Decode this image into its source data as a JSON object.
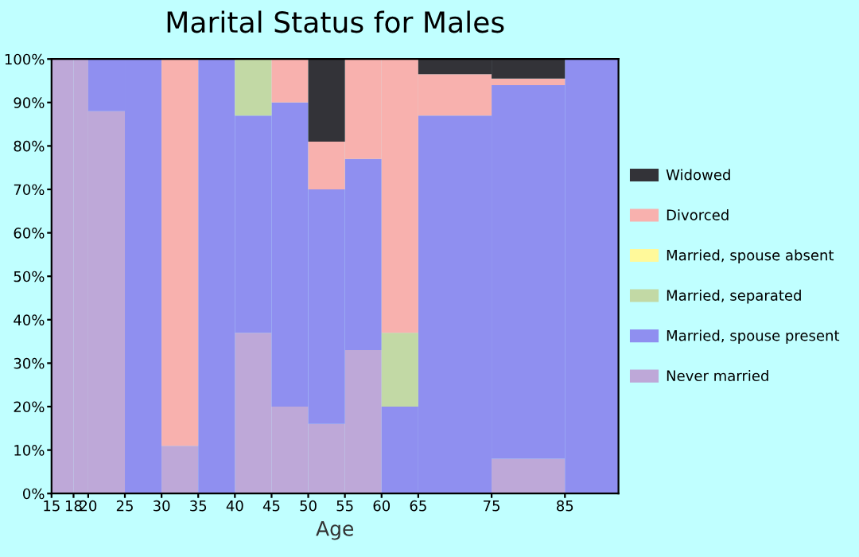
{
  "chart_data": {
    "type": "bar",
    "stacked": true,
    "title": "Marital Status for Males",
    "xlabel": "Age",
    "x": [
      16.5,
      19,
      22.5,
      27.5,
      32.5,
      37.5,
      42.5,
      47.5,
      52.5,
      57.5,
      62.5,
      70,
      80,
      88.65
    ],
    "xlim": [
      15,
      92.3
    ],
    "xticks": [
      15,
      18,
      20,
      25,
      30,
      35,
      40,
      45,
      50,
      55,
      60,
      65,
      75,
      85
    ],
    "ylim": [
      0,
      100
    ],
    "yticks": [
      {
        "value": 0,
        "label": "0%"
      },
      {
        "value": 10,
        "label": "10%"
      },
      {
        "value": 20,
        "label": "20%"
      },
      {
        "value": 30,
        "label": "30%"
      },
      {
        "value": 40,
        "label": "40%"
      },
      {
        "value": 50,
        "label": "50%"
      },
      {
        "value": 60,
        "label": "60%"
      },
      {
        "value": 70,
        "label": "70%"
      },
      {
        "value": 80,
        "label": "80%"
      },
      {
        "value": 90,
        "label": "90%"
      },
      {
        "value": 100,
        "label": "100%"
      }
    ],
    "grid": false,
    "legend": "right",
    "series": [
      {
        "name": "Never married",
        "color": "#bea8d8",
        "values": [
          100,
          100,
          88,
          0,
          11,
          0,
          37,
          20,
          16,
          33,
          0,
          0,
          8,
          0
        ]
      },
      {
        "name": "Married, spouse present",
        "color": "#8f8ff0",
        "values": [
          0,
          0,
          12,
          100,
          0,
          100,
          50,
          70,
          54,
          44,
          20,
          87,
          86,
          100
        ]
      },
      {
        "name": "Married, separated",
        "color": "#c2d9a5",
        "values": [
          0,
          0,
          0,
          0,
          0,
          0,
          13,
          0,
          0,
          0,
          17,
          0,
          0,
          0
        ]
      },
      {
        "name": "Married, spouse absent",
        "color": "#fff99a",
        "values": [
          0,
          0,
          0,
          0,
          0,
          0,
          0,
          0,
          0,
          0,
          0,
          0,
          0,
          0
        ]
      },
      {
        "name": "Divorced",
        "color": "#f8b1ae",
        "values": [
          0,
          0,
          0,
          0,
          89,
          0,
          0,
          10,
          11,
          23,
          63,
          9.5,
          1.5,
          0
        ]
      },
      {
        "name": "Widowed",
        "color": "#333338",
        "values": [
          0,
          0,
          0,
          0,
          0,
          0,
          0,
          0,
          19,
          0,
          0,
          3.5,
          4.5,
          0
        ]
      }
    ]
  }
}
